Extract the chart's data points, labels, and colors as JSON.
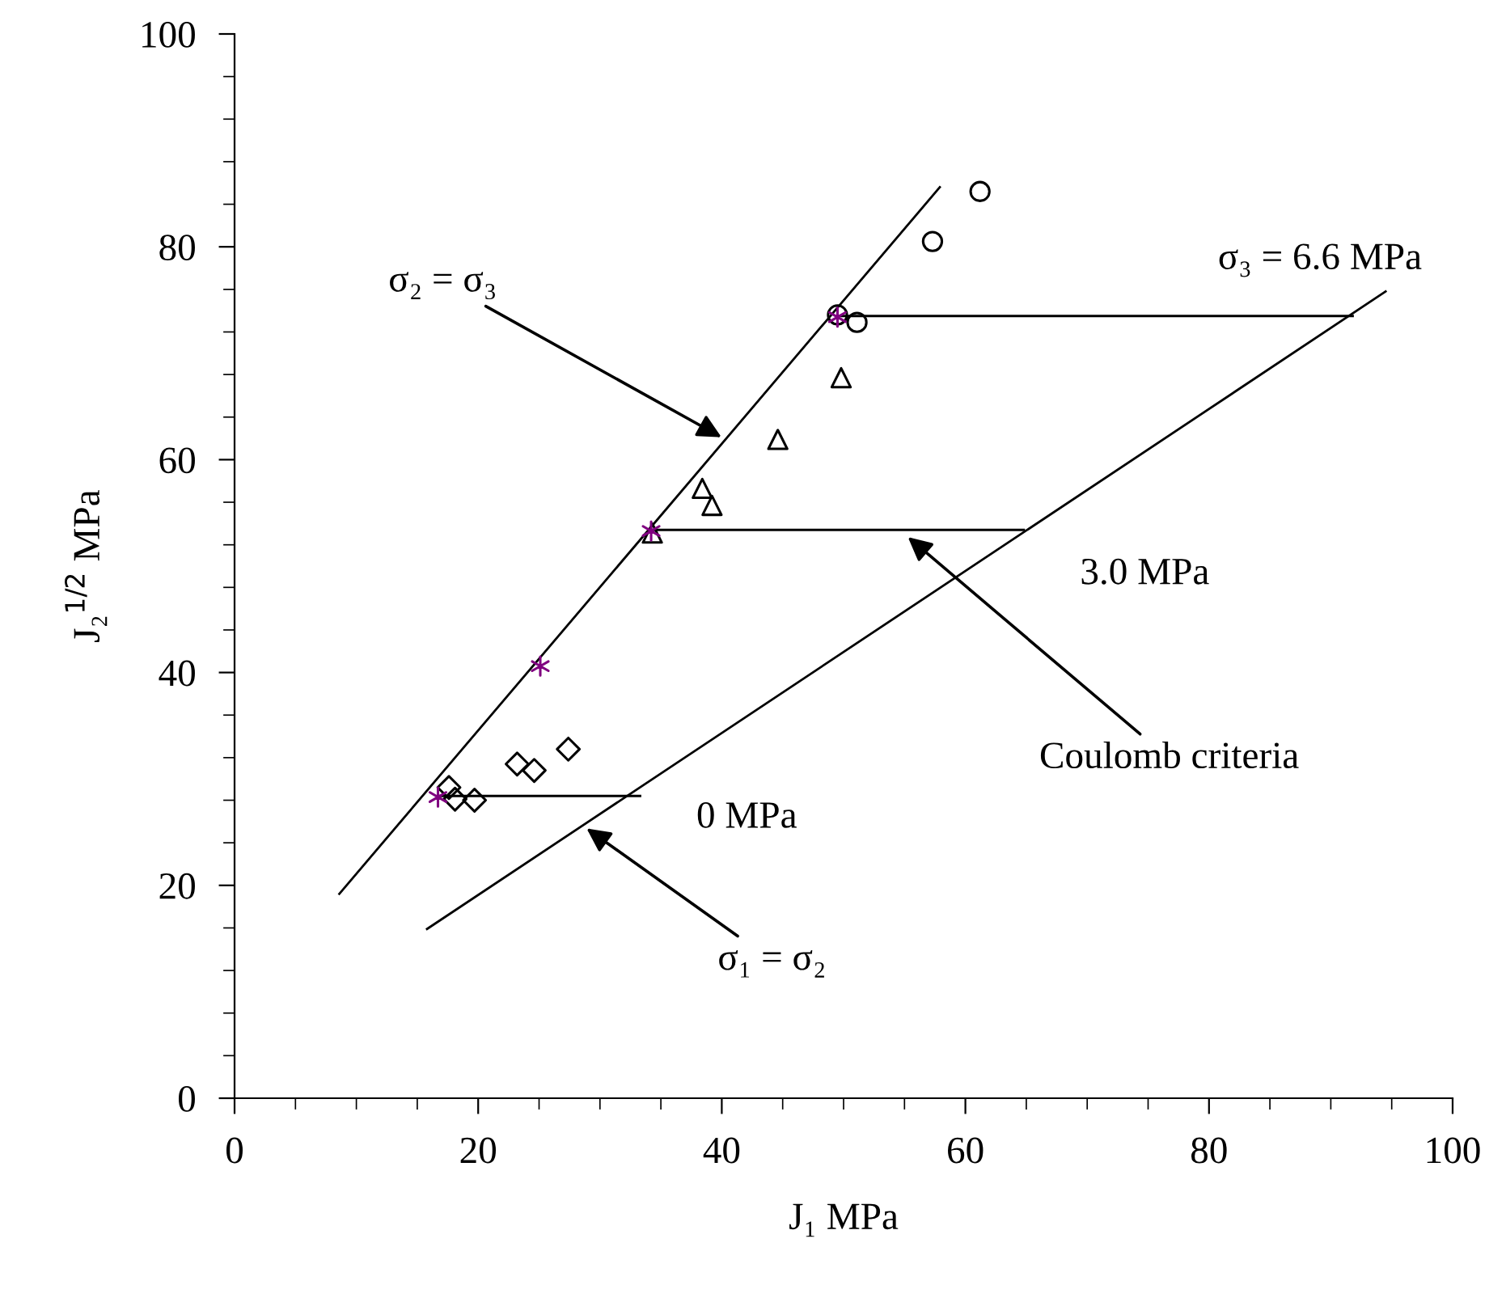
{
  "chart_data": {
    "type": "scatter",
    "xlabel": "J₁ MPa",
    "ylabel": "J₂$^{1/2}$ MPa",
    "xlim": [
      0,
      100
    ],
    "ylim": [
      0,
      100
    ],
    "xticks": [
      0,
      20,
      40,
      60,
      80,
      100
    ],
    "yticks": [
      0,
      20,
      40,
      60,
      80,
      100
    ],
    "grid": false,
    "legend": false,
    "series": [
      {
        "marker": "diamond",
        "color": "#000000",
        "x": [
          17.6,
          18.1,
          19.7,
          23.2,
          24.6,
          27.4
        ],
        "values": [
          29.2,
          28.1,
          28.0,
          31.4,
          30.8,
          32.8
        ]
      },
      {
        "marker": "triangle",
        "color": "#000000",
        "x": [
          34.3,
          38.4,
          39.2,
          44.6,
          49.8
        ],
        "values": [
          53.1,
          57.3,
          55.7,
          61.9,
          67.7
        ]
      },
      {
        "marker": "circle",
        "color": "#000000",
        "x": [
          49.5,
          51.1,
          57.3,
          61.2
        ],
        "values": [
          73.6,
          72.9,
          80.5,
          85.2
        ]
      },
      {
        "marker": "cross",
        "color": "#800080",
        "x": [
          16.7,
          25.1,
          34.2,
          49.5
        ],
        "values": [
          28.3,
          40.6,
          53.3,
          73.4
        ]
      },
      {
        "type": "line",
        "marker": "none",
        "color": "#000000",
        "x": [
          8.6,
          57.9
        ],
        "values": [
          19.2,
          85.6
        ]
      },
      {
        "type": "line",
        "marker": "none",
        "color": "#000000",
        "x": [
          15.8,
          94.5
        ],
        "values": [
          15.9,
          75.8
        ]
      },
      {
        "type": "line",
        "marker": "none",
        "color": "#000000",
        "x": [
          16.7,
          33.3
        ],
        "values": [
          28.4,
          28.4
        ]
      },
      {
        "type": "line",
        "marker": "none",
        "color": "#000000",
        "x": [
          34.2,
          64.8
        ],
        "values": [
          53.4,
          53.4
        ]
      },
      {
        "type": "line",
        "marker": "none",
        "color": "#000000",
        "x": [
          49.5,
          91.8
        ],
        "values": [
          73.5,
          73.5
        ]
      }
    ],
    "annotations": [
      {
        "text": "σ₂ = σ₃",
        "x": 40.3,
        "y": 61.9
      },
      {
        "text": "σ₃ = 6.6 MPa",
        "x": 91.8,
        "y": 73.5
      },
      {
        "text": "3.0 MPa",
        "x": 64.8,
        "y": 53.4
      },
      {
        "text": "Coulomb criteria",
        "x": 55.0,
        "y": 53.0
      },
      {
        "text": "0 MPa",
        "x": 33.3,
        "y": 28.4
      },
      {
        "text": "σ₁ = σ₂",
        "x": 28.6,
        "y": 25.6
      }
    ]
  }
}
